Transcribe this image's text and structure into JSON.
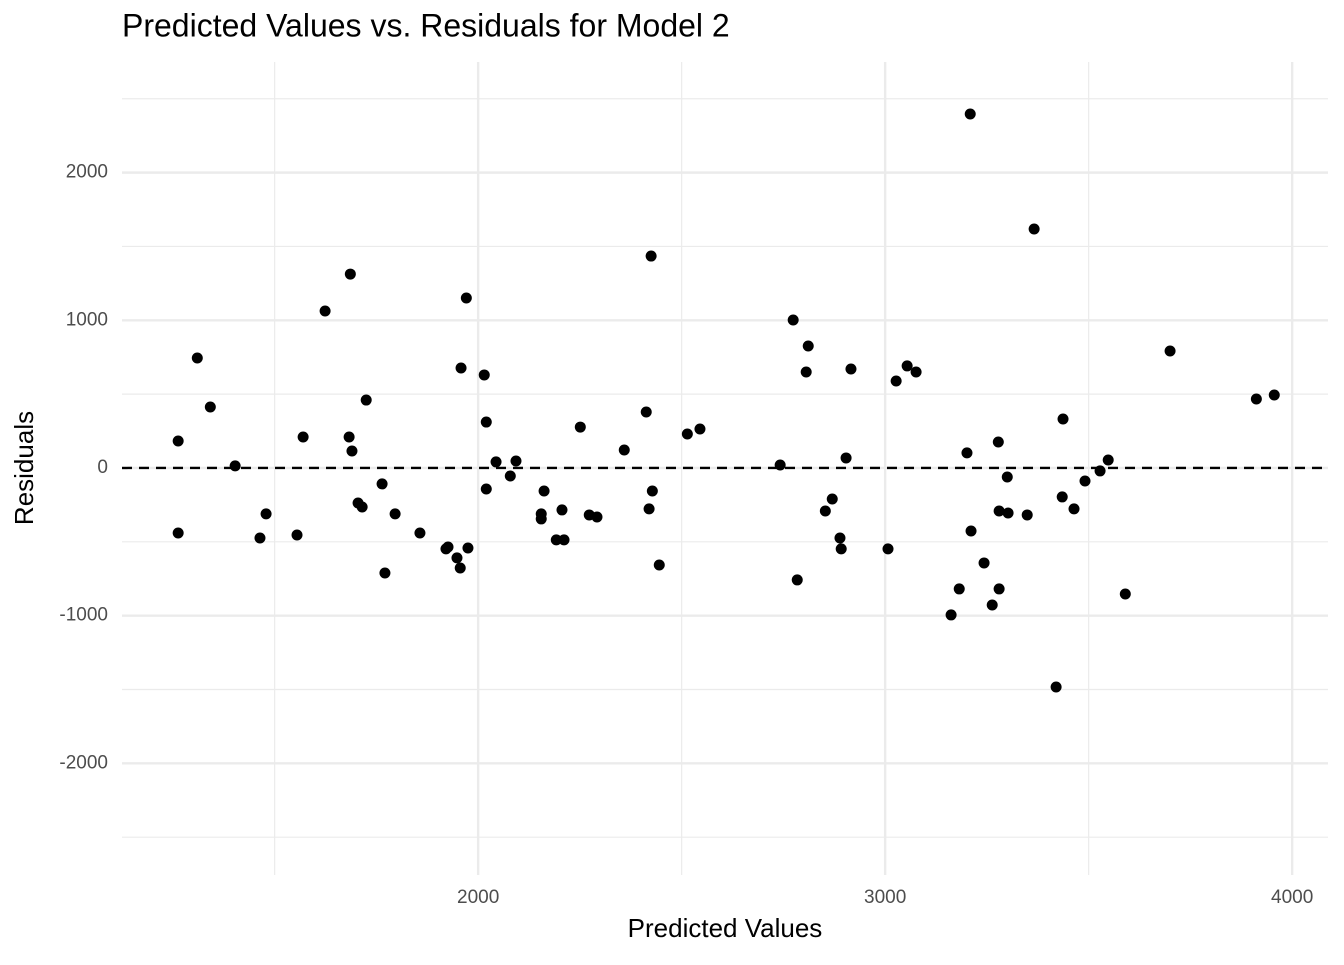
{
  "chart_data": {
    "type": "scatter",
    "title": "Predicted Values vs. Residuals for Model 2",
    "xlabel": "Predicted Values",
    "ylabel": "Residuals",
    "color": "#000000",
    "grid": true,
    "hline": 0,
    "xlim": [
      1125,
      4088
    ],
    "ylim": [
      -2756,
      2749
    ],
    "xticks": [
      2000,
      3000,
      4000
    ],
    "yticks": [
      -2000,
      -1000,
      0,
      1000,
      2000
    ],
    "x": [
      1263,
      1263,
      1310,
      1342,
      1403,
      1464,
      1479,
      1555,
      1570,
      1624,
      1683,
      1686,
      1690,
      1705,
      1715,
      1725,
      1764,
      1771,
      1796,
      1857,
      1921,
      1926,
      1948,
      1956,
      1958,
      1971,
      1975,
      2015,
      2020,
      2020,
      2044,
      2079,
      2093,
      2162,
      2155,
      2155,
      2192,
      2206,
      2211,
      2251,
      2273,
      2292,
      2359,
      2413,
      2420,
      2428,
      2425,
      2445,
      2514,
      2545,
      2742,
      2774,
      2784,
      2806,
      2811,
      2853,
      2870,
      2889,
      2892,
      2904,
      2916,
      3007,
      3027,
      3054,
      3076,
      3162,
      3182,
      3201,
      3209,
      3211,
      3243,
      3263,
      3278,
      3280,
      3280,
      3300,
      3302,
      3349,
      3366,
      3420,
      3435,
      3437,
      3464,
      3491,
      3528,
      3548,
      3590,
      3700,
      3912,
      3956
    ],
    "values": [
      -440,
      183,
      745,
      413,
      14,
      -474,
      -311,
      -454,
      210,
      1063,
      210,
      1313,
      115,
      -237,
      -264,
      460,
      -108,
      -711,
      -311,
      -440,
      -548,
      -535,
      -609,
      -677,
      677,
      1151,
      -542,
      630,
      311,
      -142,
      41,
      -54,
      47,
      -156,
      -311,
      -345,
      -487,
      -284,
      -487,
      277,
      -318,
      -332,
      122,
      379,
      -277,
      -156,
      1435,
      -657,
      230,
      264,
      20,
      1002,
      -758,
      650,
      826,
      -291,
      -210,
      -474,
      -548,
      68,
      670,
      -548,
      589,
      691,
      650,
      -995,
      -819,
      102,
      2397,
      -427,
      -643,
      -928,
      176,
      -819,
      -291,
      -61,
      -305,
      -318,
      1618,
      -1483,
      -196,
      332,
      -277,
      -88,
      -20,
      54,
      -853,
      792,
      467,
      494
    ]
  }
}
